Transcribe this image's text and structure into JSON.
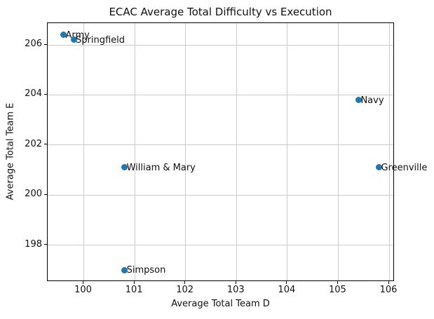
{
  "chart_data": {
    "type": "scatter",
    "title": "ECAC Average Total Difficulty vs Execution",
    "xlabel": "Average Total Team D",
    "ylabel": "Average Total Team E",
    "xlim": [
      99.29,
      106.11
    ],
    "ylim": [
      196.53,
      206.87
    ],
    "x_ticks": [
      100,
      101,
      102,
      103,
      104,
      105,
      106
    ],
    "y_ticks": [
      198,
      200,
      202,
      204,
      206
    ],
    "grid": true,
    "legend": "none",
    "marker_color": "#1f77b4",
    "grid_color": "#cccccc",
    "points": [
      {
        "label": "Army",
        "x": 99.6,
        "y": 206.4
      },
      {
        "label": "Springfield",
        "x": 99.8,
        "y": 206.2
      },
      {
        "label": "Navy",
        "x": 105.4,
        "y": 203.8
      },
      {
        "label": "William & Mary",
        "x": 100.8,
        "y": 201.1
      },
      {
        "label": "Greenville",
        "x": 105.8,
        "y": 201.1
      },
      {
        "label": "Simpson",
        "x": 100.8,
        "y": 197.0
      }
    ]
  }
}
